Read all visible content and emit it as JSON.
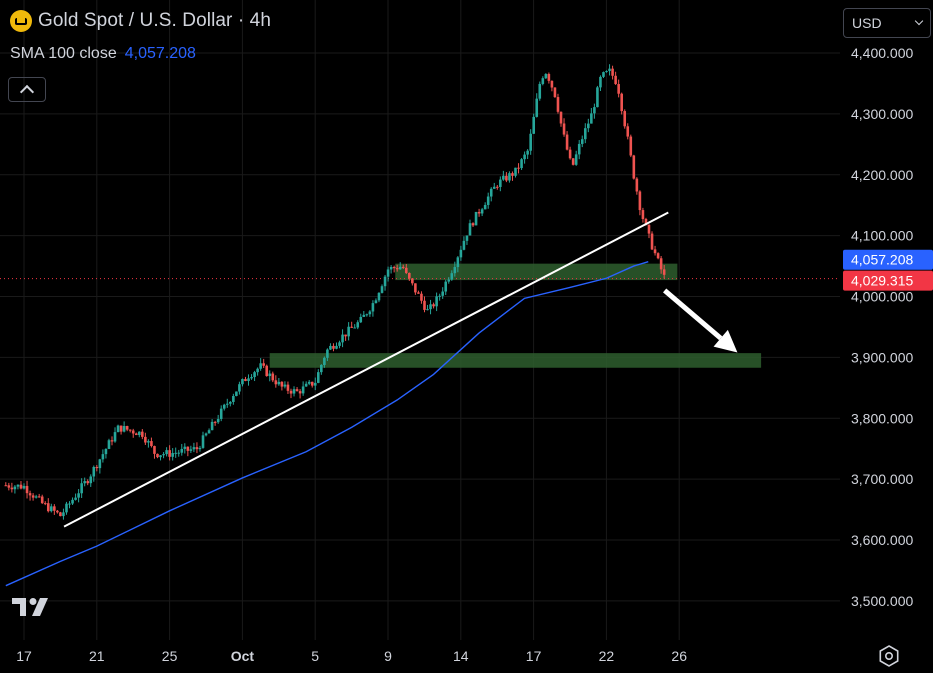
{
  "header": {
    "symbol_title": "Gold Spot / U.S. Dollar · 4h",
    "indicator_label": "SMA 100 close",
    "indicator_value": "4,057.208",
    "currency": "USD"
  },
  "colors": {
    "background": "#000000",
    "up": "#26a69a",
    "down": "#ef5350",
    "sma": "#2962ff",
    "trendline": "#ffffff",
    "zone": "#2e5e2e",
    "axis_text": "#d1d4dc",
    "grid": "#1a1a1a",
    "sma_badge": "#2962ff",
    "price_badge": "#f23645"
  },
  "chart_data": {
    "type": "candlestick",
    "title": "Gold Spot / U.S. Dollar · 4h",
    "interval": "4h",
    "y_range": [
      3430,
      4450
    ],
    "y_ticks": [
      {
        "value": 3500,
        "label": "3,500.000"
      },
      {
        "value": 3600,
        "label": "3,600.000"
      },
      {
        "value": 3700,
        "label": "3,700.000"
      },
      {
        "value": 3800,
        "label": "3,800.000"
      },
      {
        "value": 3900,
        "label": "3,900.000"
      },
      {
        "value": 4000,
        "label": "4,000.000"
      },
      {
        "value": 4100,
        "label": "4,100.000"
      },
      {
        "value": 4200,
        "label": "4,200.000"
      },
      {
        "value": 4300,
        "label": "4,300.000"
      },
      {
        "value": 4400,
        "label": "4,400.000"
      }
    ],
    "x_range": [
      16,
      28.5
    ],
    "x_ticks": [
      {
        "value": 17,
        "label": "17"
      },
      {
        "value": 21,
        "label": "21"
      },
      {
        "value": 25,
        "label": "25"
      },
      {
        "value": 29,
        "label": "Oct"
      },
      {
        "value": 33,
        "label": "5"
      },
      {
        "value": 37,
        "label": "9"
      },
      {
        "value": 41,
        "label": "14"
      },
      {
        "value": 45,
        "label": "17"
      },
      {
        "value": 49,
        "label": "22"
      },
      {
        "value": 53,
        "label": "26"
      }
    ],
    "x_axis_range": [
      16,
      57
    ],
    "price_path": [
      [
        16,
        3690
      ],
      [
        17,
        3688
      ],
      [
        18,
        3660
      ],
      [
        19,
        3640
      ],
      [
        20.5,
        3700
      ],
      [
        21.7,
        3760
      ],
      [
        22.2,
        3785
      ],
      [
        23.5,
        3775
      ],
      [
        24.2,
        3742
      ],
      [
        25,
        3742
      ],
      [
        26.5,
        3750
      ],
      [
        27.5,
        3795
      ],
      [
        28.5,
        3840
      ],
      [
        29.3,
        3870
      ],
      [
        30,
        3885
      ],
      [
        31.2,
        3850
      ],
      [
        32,
        3843
      ],
      [
        33,
        3860
      ],
      [
        33.6,
        3910
      ],
      [
        34.5,
        3935
      ],
      [
        35.5,
        3960
      ],
      [
        36.2,
        3990
      ],
      [
        37,
        4045
      ],
      [
        37.8,
        4050
      ],
      [
        38,
        4035
      ],
      [
        38.7,
        4000
      ],
      [
        39.2,
        3975
      ],
      [
        39.8,
        4000
      ],
      [
        40.6,
        4050
      ],
      [
        41.4,
        4110
      ],
      [
        42.2,
        4150
      ],
      [
        43,
        4185
      ],
      [
        44,
        4205
      ],
      [
        44.7,
        4240
      ],
      [
        45.4,
        4360
      ],
      [
        45.7,
        4370
      ],
      [
        46.2,
        4330
      ],
      [
        46.6,
        4270
      ],
      [
        47.1,
        4210
      ],
      [
        47.6,
        4255
      ],
      [
        48.2,
        4300
      ],
      [
        48.7,
        4360
      ],
      [
        49.2,
        4370
      ],
      [
        49.6,
        4350
      ],
      [
        50.1,
        4270
      ],
      [
        50.5,
        4200
      ],
      [
        50.9,
        4140
      ],
      [
        51.3,
        4100
      ],
      [
        51.8,
        4060
      ],
      [
        52.2,
        4030
      ]
    ],
    "sma_100": [
      [
        16,
        3525
      ],
      [
        19,
        3565
      ],
      [
        21,
        3590
      ],
      [
        25,
        3648
      ],
      [
        29,
        3702
      ],
      [
        32.5,
        3745
      ],
      [
        35,
        3785
      ],
      [
        37.5,
        3830
      ],
      [
        39.5,
        3872
      ],
      [
        42,
        3940
      ],
      [
        44.5,
        3997
      ],
      [
        47,
        4015
      ],
      [
        49,
        4030
      ],
      [
        50.5,
        4050
      ],
      [
        51.3,
        4057.208
      ]
    ],
    "trendline": [
      [
        19.2,
        3622
      ],
      [
        52.4,
        4138
      ]
    ],
    "zones": [
      {
        "x": [
          37.4,
          52.9
        ],
        "y": [
          4027,
          4054
        ]
      },
      {
        "x": [
          30.5,
          57.5
        ],
        "y": [
          3883,
          3907
        ]
      }
    ],
    "arrow": {
      "from": [
        52.2,
        4010
      ],
      "to": [
        56.2,
        3908
      ]
    },
    "last_price": {
      "value": 4029.315,
      "label": "4,029.315"
    },
    "sma_last": {
      "value": 4057.208,
      "label": "4,057.208"
    }
  }
}
